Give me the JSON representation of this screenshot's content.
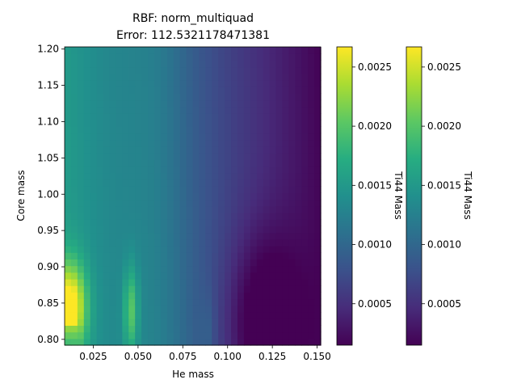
{
  "chart_data": {
    "type": "heatmap",
    "title": "RBF: norm_multiquad",
    "subtitle": "Error: 112.5321178471381",
    "xlabel": "He mass",
    "ylabel": "Core mass",
    "xlim": [
      0.009,
      0.152
    ],
    "ylim": [
      0.792,
      1.203
    ],
    "xticks": [
      0.025,
      0.05,
      0.075,
      0.1,
      0.125,
      0.15
    ],
    "xtick_labels": [
      "0.025",
      "0.050",
      "0.075",
      "0.100",
      "0.125",
      "0.150"
    ],
    "yticks": [
      0.8,
      0.85,
      0.9,
      0.95,
      1.0,
      1.05,
      1.1,
      1.15,
      1.2
    ],
    "ytick_labels": [
      "0.80",
      "0.85",
      "0.90",
      "0.95",
      "1.00",
      "1.05",
      "1.10",
      "1.15",
      "1.20"
    ],
    "grid_resolution": [
      40,
      45
    ],
    "colormap": "viridis",
    "color_range": [
      0.00015,
      0.00267
    ],
    "value_features": {
      "ridges": [
        {
          "he_center": 0.012,
          "width": 0.009,
          "peak": 0.0026,
          "at_core": 0.845
        },
        {
          "he_center": 0.046,
          "width": 0.004,
          "peak": 0.0019,
          "at_core": 0.84
        },
        {
          "he_center": 0.089,
          "width": 0.004,
          "peak": 0.00135,
          "at_core": 0.81
        }
      ],
      "background": "decreases with He mass from about 0.0015 to 0.0004",
      "dark_valley": {
        "he_center": 0.12,
        "core_center": 0.82,
        "min": 0.0002
      }
    },
    "colorbars": [
      {
        "label": "Ti44 Mass",
        "ticks": [
          0.0005,
          0.001,
          0.0015,
          0.002,
          0.0025
        ],
        "tick_labels": [
          "0.0005",
          "0.0010",
          "0.0015",
          "0.0020",
          "0.0025"
        ]
      },
      {
        "label": "Ti44 Mass",
        "ticks": [
          0.0005,
          0.001,
          0.0015,
          0.002,
          0.0025
        ],
        "tick_labels": [
          "0.0005",
          "0.0010",
          "0.0015",
          "0.0020",
          "0.0025"
        ]
      }
    ]
  }
}
